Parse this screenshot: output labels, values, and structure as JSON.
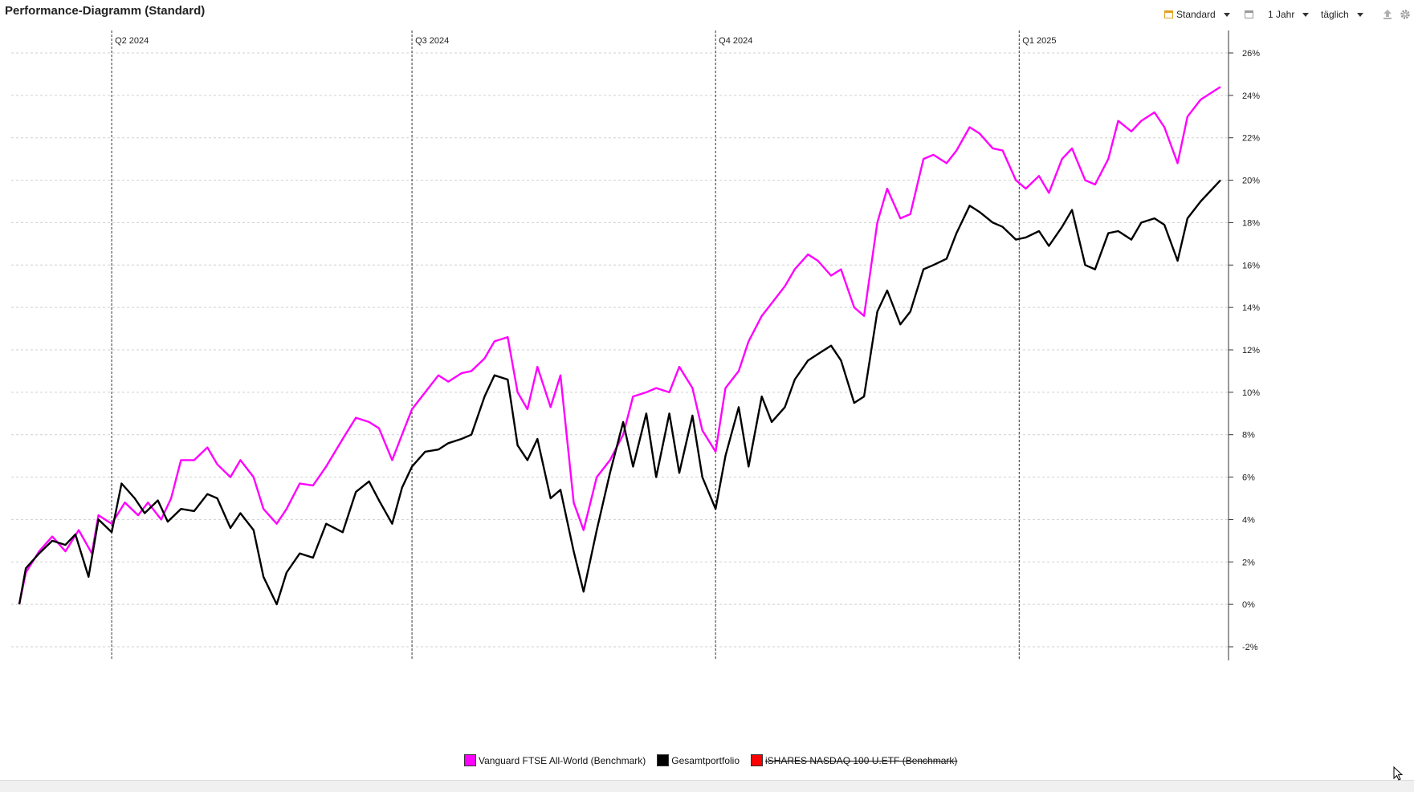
{
  "page": {
    "title": "Performance-Diagramm (Standard)"
  },
  "toolbar": {
    "view_label": "Standard",
    "view_icon": "calendar-icon",
    "period_label": "1 Jahr",
    "interval_label": "täglich",
    "export_icon": "upload-icon",
    "settings_icon": "gear-icon"
  },
  "chart_data": {
    "type": "line",
    "title": "Performance-Diagramm (Standard)",
    "x_range": [
      "2024-03-04",
      "2025-03-03"
    ],
    "y_unit": "%",
    "ylim": [
      -3,
      27
    ],
    "y_ticks": [
      -2,
      0,
      2,
      4,
      6,
      8,
      10,
      12,
      14,
      16,
      18,
      20,
      22,
      24,
      26
    ],
    "y_tick_labels": [
      "-2%",
      "0%",
      "2%",
      "4%",
      "6%",
      "8%",
      "10%",
      "12%",
      "14%",
      "16%",
      "18%",
      "20%",
      "22%",
      "24%",
      "26%"
    ],
    "quarter_markers": [
      {
        "label": "Q2 2024",
        "date": "2024-04-01"
      },
      {
        "label": "Q3 2024",
        "date": "2024-07-01"
      },
      {
        "label": "Q4 2024",
        "date": "2024-10-01"
      },
      {
        "label": "Q1 2025",
        "date": "2025-01-01"
      }
    ],
    "grid": true,
    "y_axis_position": "right",
    "series": [
      {
        "name": "Vanguard FTSE All-World  (Benchmark)",
        "color": "#ff00ff",
        "strikethrough": false,
        "points": [
          [
            "2024-03-04",
            0.0
          ],
          [
            "2024-03-06",
            1.5
          ],
          [
            "2024-03-10",
            2.5
          ],
          [
            "2024-03-14",
            3.2
          ],
          [
            "2024-03-18",
            2.5
          ],
          [
            "2024-03-22",
            3.5
          ],
          [
            "2024-03-26",
            2.4
          ],
          [
            "2024-03-28",
            4.2
          ],
          [
            "2024-04-01",
            3.8
          ],
          [
            "2024-04-05",
            4.8
          ],
          [
            "2024-04-09",
            4.2
          ],
          [
            "2024-04-12",
            4.8
          ],
          [
            "2024-04-16",
            4.0
          ],
          [
            "2024-04-19",
            5.0
          ],
          [
            "2024-04-22",
            6.8
          ],
          [
            "2024-04-26",
            6.8
          ],
          [
            "2024-04-30",
            7.4
          ],
          [
            "2024-05-03",
            6.6
          ],
          [
            "2024-05-07",
            6.0
          ],
          [
            "2024-05-10",
            6.8
          ],
          [
            "2024-05-14",
            6.0
          ],
          [
            "2024-05-17",
            4.5
          ],
          [
            "2024-05-21",
            3.8
          ],
          [
            "2024-05-24",
            4.5
          ],
          [
            "2024-05-28",
            5.7
          ],
          [
            "2024-06-01",
            5.6
          ],
          [
            "2024-06-05",
            6.5
          ],
          [
            "2024-06-10",
            7.8
          ],
          [
            "2024-06-14",
            8.8
          ],
          [
            "2024-06-18",
            8.6
          ],
          [
            "2024-06-21",
            8.3
          ],
          [
            "2024-06-25",
            6.8
          ],
          [
            "2024-06-28",
            8.0
          ],
          [
            "2024-07-01",
            9.2
          ],
          [
            "2024-07-05",
            10.0
          ],
          [
            "2024-07-09",
            10.8
          ],
          [
            "2024-07-12",
            10.5
          ],
          [
            "2024-07-16",
            10.9
          ],
          [
            "2024-07-19",
            11.0
          ],
          [
            "2024-07-23",
            11.6
          ],
          [
            "2024-07-26",
            12.4
          ],
          [
            "2024-07-30",
            12.6
          ],
          [
            "2024-08-02",
            10.0
          ],
          [
            "2024-08-05",
            9.2
          ],
          [
            "2024-08-08",
            11.2
          ],
          [
            "2024-08-12",
            9.3
          ],
          [
            "2024-08-15",
            10.8
          ],
          [
            "2024-08-19",
            4.8
          ],
          [
            "2024-08-22",
            3.5
          ],
          [
            "2024-08-26",
            6.0
          ],
          [
            "2024-08-30",
            6.8
          ],
          [
            "2024-09-03",
            8.0
          ],
          [
            "2024-09-06",
            9.8
          ],
          [
            "2024-09-10",
            10.0
          ],
          [
            "2024-09-13",
            10.2
          ],
          [
            "2024-09-17",
            10.0
          ],
          [
            "2024-09-20",
            11.2
          ],
          [
            "2024-09-24",
            10.2
          ],
          [
            "2024-09-27",
            8.2
          ],
          [
            "2024-10-01",
            7.2
          ],
          [
            "2024-10-04",
            10.2
          ],
          [
            "2024-10-08",
            11.0
          ],
          [
            "2024-10-11",
            12.4
          ],
          [
            "2024-10-15",
            13.6
          ],
          [
            "2024-10-18",
            14.2
          ],
          [
            "2024-10-22",
            15.0
          ],
          [
            "2024-10-25",
            15.8
          ],
          [
            "2024-10-29",
            16.5
          ],
          [
            "2024-11-01",
            16.2
          ],
          [
            "2024-11-05",
            15.5
          ],
          [
            "2024-11-08",
            15.8
          ],
          [
            "2024-11-12",
            14.0
          ],
          [
            "2024-11-15",
            13.6
          ],
          [
            "2024-11-19",
            18.0
          ],
          [
            "2024-11-22",
            19.6
          ],
          [
            "2024-11-26",
            18.2
          ],
          [
            "2024-11-29",
            18.4
          ],
          [
            "2024-12-03",
            21.0
          ],
          [
            "2024-12-06",
            21.2
          ],
          [
            "2024-12-10",
            20.8
          ],
          [
            "2024-12-13",
            21.4
          ],
          [
            "2024-12-17",
            22.5
          ],
          [
            "2024-12-20",
            22.2
          ],
          [
            "2024-12-24",
            21.5
          ],
          [
            "2024-12-27",
            21.4
          ],
          [
            "2024-12-31",
            20.0
          ],
          [
            "2025-01-03",
            19.6
          ],
          [
            "2025-01-07",
            20.2
          ],
          [
            "2025-01-10",
            19.4
          ],
          [
            "2025-01-14",
            21.0
          ],
          [
            "2025-01-17",
            21.5
          ],
          [
            "2025-01-21",
            20.0
          ],
          [
            "2025-01-24",
            19.8
          ],
          [
            "2025-01-28",
            21.0
          ],
          [
            "2025-01-31",
            22.8
          ],
          [
            "2025-02-04",
            22.3
          ],
          [
            "2025-02-07",
            22.8
          ],
          [
            "2025-02-11",
            23.2
          ],
          [
            "2025-02-14",
            22.5
          ],
          [
            "2025-02-18",
            20.8
          ],
          [
            "2025-02-21",
            23.0
          ],
          [
            "2025-02-25",
            23.8
          ],
          [
            "2025-03-03",
            24.4
          ]
        ]
      },
      {
        "name": "Gesamtportfolio",
        "color": "#000000",
        "strikethrough": false,
        "points": [
          [
            "2024-03-04",
            0.0
          ],
          [
            "2024-03-06",
            1.7
          ],
          [
            "2024-03-10",
            2.4
          ],
          [
            "2024-03-14",
            3.0
          ],
          [
            "2024-03-18",
            2.8
          ],
          [
            "2024-03-21",
            3.3
          ],
          [
            "2024-03-25",
            1.3
          ],
          [
            "2024-03-28",
            4.0
          ],
          [
            "2024-04-01",
            3.4
          ],
          [
            "2024-04-04",
            5.7
          ],
          [
            "2024-04-08",
            5.0
          ],
          [
            "2024-04-11",
            4.3
          ],
          [
            "2024-04-15",
            4.9
          ],
          [
            "2024-04-18",
            3.9
          ],
          [
            "2024-04-22",
            4.5
          ],
          [
            "2024-04-26",
            4.4
          ],
          [
            "2024-04-30",
            5.2
          ],
          [
            "2024-05-03",
            5.0
          ],
          [
            "2024-05-07",
            3.6
          ],
          [
            "2024-05-10",
            4.3
          ],
          [
            "2024-05-14",
            3.5
          ],
          [
            "2024-05-17",
            1.3
          ],
          [
            "2024-05-21",
            0.0
          ],
          [
            "2024-05-24",
            1.5
          ],
          [
            "2024-05-28",
            2.4
          ],
          [
            "2024-06-01",
            2.2
          ],
          [
            "2024-06-05",
            3.8
          ],
          [
            "2024-06-10",
            3.4
          ],
          [
            "2024-06-14",
            5.3
          ],
          [
            "2024-06-18",
            5.8
          ],
          [
            "2024-06-21",
            4.9
          ],
          [
            "2024-06-25",
            3.8
          ],
          [
            "2024-06-28",
            5.5
          ],
          [
            "2024-07-01",
            6.5
          ],
          [
            "2024-07-05",
            7.2
          ],
          [
            "2024-07-09",
            7.3
          ],
          [
            "2024-07-12",
            7.6
          ],
          [
            "2024-07-16",
            7.8
          ],
          [
            "2024-07-19",
            8.0
          ],
          [
            "2024-07-23",
            9.8
          ],
          [
            "2024-07-26",
            10.8
          ],
          [
            "2024-07-30",
            10.6
          ],
          [
            "2024-08-02",
            7.5
          ],
          [
            "2024-08-05",
            6.8
          ],
          [
            "2024-08-08",
            7.8
          ],
          [
            "2024-08-12",
            5.0
          ],
          [
            "2024-08-15",
            5.4
          ],
          [
            "2024-08-19",
            2.5
          ],
          [
            "2024-08-22",
            0.6
          ],
          [
            "2024-08-26",
            3.5
          ],
          [
            "2024-08-30",
            6.2
          ],
          [
            "2024-09-03",
            8.6
          ],
          [
            "2024-09-06",
            6.5
          ],
          [
            "2024-09-10",
            9.0
          ],
          [
            "2024-09-13",
            6.0
          ],
          [
            "2024-09-17",
            9.0
          ],
          [
            "2024-09-20",
            6.2
          ],
          [
            "2024-09-24",
            8.9
          ],
          [
            "2024-09-27",
            6.0
          ],
          [
            "2024-10-01",
            4.5
          ],
          [
            "2024-10-04",
            7.0
          ],
          [
            "2024-10-08",
            9.3
          ],
          [
            "2024-10-11",
            6.5
          ],
          [
            "2024-10-15",
            9.8
          ],
          [
            "2024-10-18",
            8.6
          ],
          [
            "2024-10-22",
            9.3
          ],
          [
            "2024-10-25",
            10.6
          ],
          [
            "2024-10-29",
            11.5
          ],
          [
            "2024-11-01",
            11.8
          ],
          [
            "2024-11-05",
            12.2
          ],
          [
            "2024-11-08",
            11.5
          ],
          [
            "2024-11-12",
            9.5
          ],
          [
            "2024-11-15",
            9.8
          ],
          [
            "2024-11-19",
            13.8
          ],
          [
            "2024-11-22",
            14.8
          ],
          [
            "2024-11-26",
            13.2
          ],
          [
            "2024-11-29",
            13.8
          ],
          [
            "2024-12-03",
            15.8
          ],
          [
            "2024-12-06",
            16.0
          ],
          [
            "2024-12-10",
            16.3
          ],
          [
            "2024-12-13",
            17.5
          ],
          [
            "2024-12-17",
            18.8
          ],
          [
            "2024-12-20",
            18.5
          ],
          [
            "2024-12-24",
            18.0
          ],
          [
            "2024-12-27",
            17.8
          ],
          [
            "2024-12-31",
            17.2
          ],
          [
            "2025-01-03",
            17.3
          ],
          [
            "2025-01-07",
            17.6
          ],
          [
            "2025-01-10",
            16.9
          ],
          [
            "2025-01-14",
            17.8
          ],
          [
            "2025-01-17",
            18.6
          ],
          [
            "2025-01-21",
            16.0
          ],
          [
            "2025-01-24",
            15.8
          ],
          [
            "2025-01-28",
            17.5
          ],
          [
            "2025-01-31",
            17.6
          ],
          [
            "2025-02-04",
            17.2
          ],
          [
            "2025-02-07",
            18.0
          ],
          [
            "2025-02-11",
            18.2
          ],
          [
            "2025-02-14",
            17.9
          ],
          [
            "2025-02-18",
            16.2
          ],
          [
            "2025-02-21",
            18.2
          ],
          [
            "2025-02-25",
            19.0
          ],
          [
            "2025-03-03",
            20.0
          ]
        ]
      },
      {
        "name": "iSHARES NASDAQ 100 U.ETF (Benchmark)",
        "color": "#ff0000",
        "strikethrough": true,
        "points": []
      }
    ]
  },
  "legend": [
    {
      "label": "Vanguard FTSE All-World  (Benchmark)",
      "color": "#ff00ff",
      "strikethrough": false
    },
    {
      "label": "Gesamtportfolio",
      "color": "#000000",
      "strikethrough": false
    },
    {
      "label": "iSHARES NASDAQ 100 U.ETF (Benchmark)",
      "color": "#ff0000",
      "strikethrough": true
    }
  ]
}
